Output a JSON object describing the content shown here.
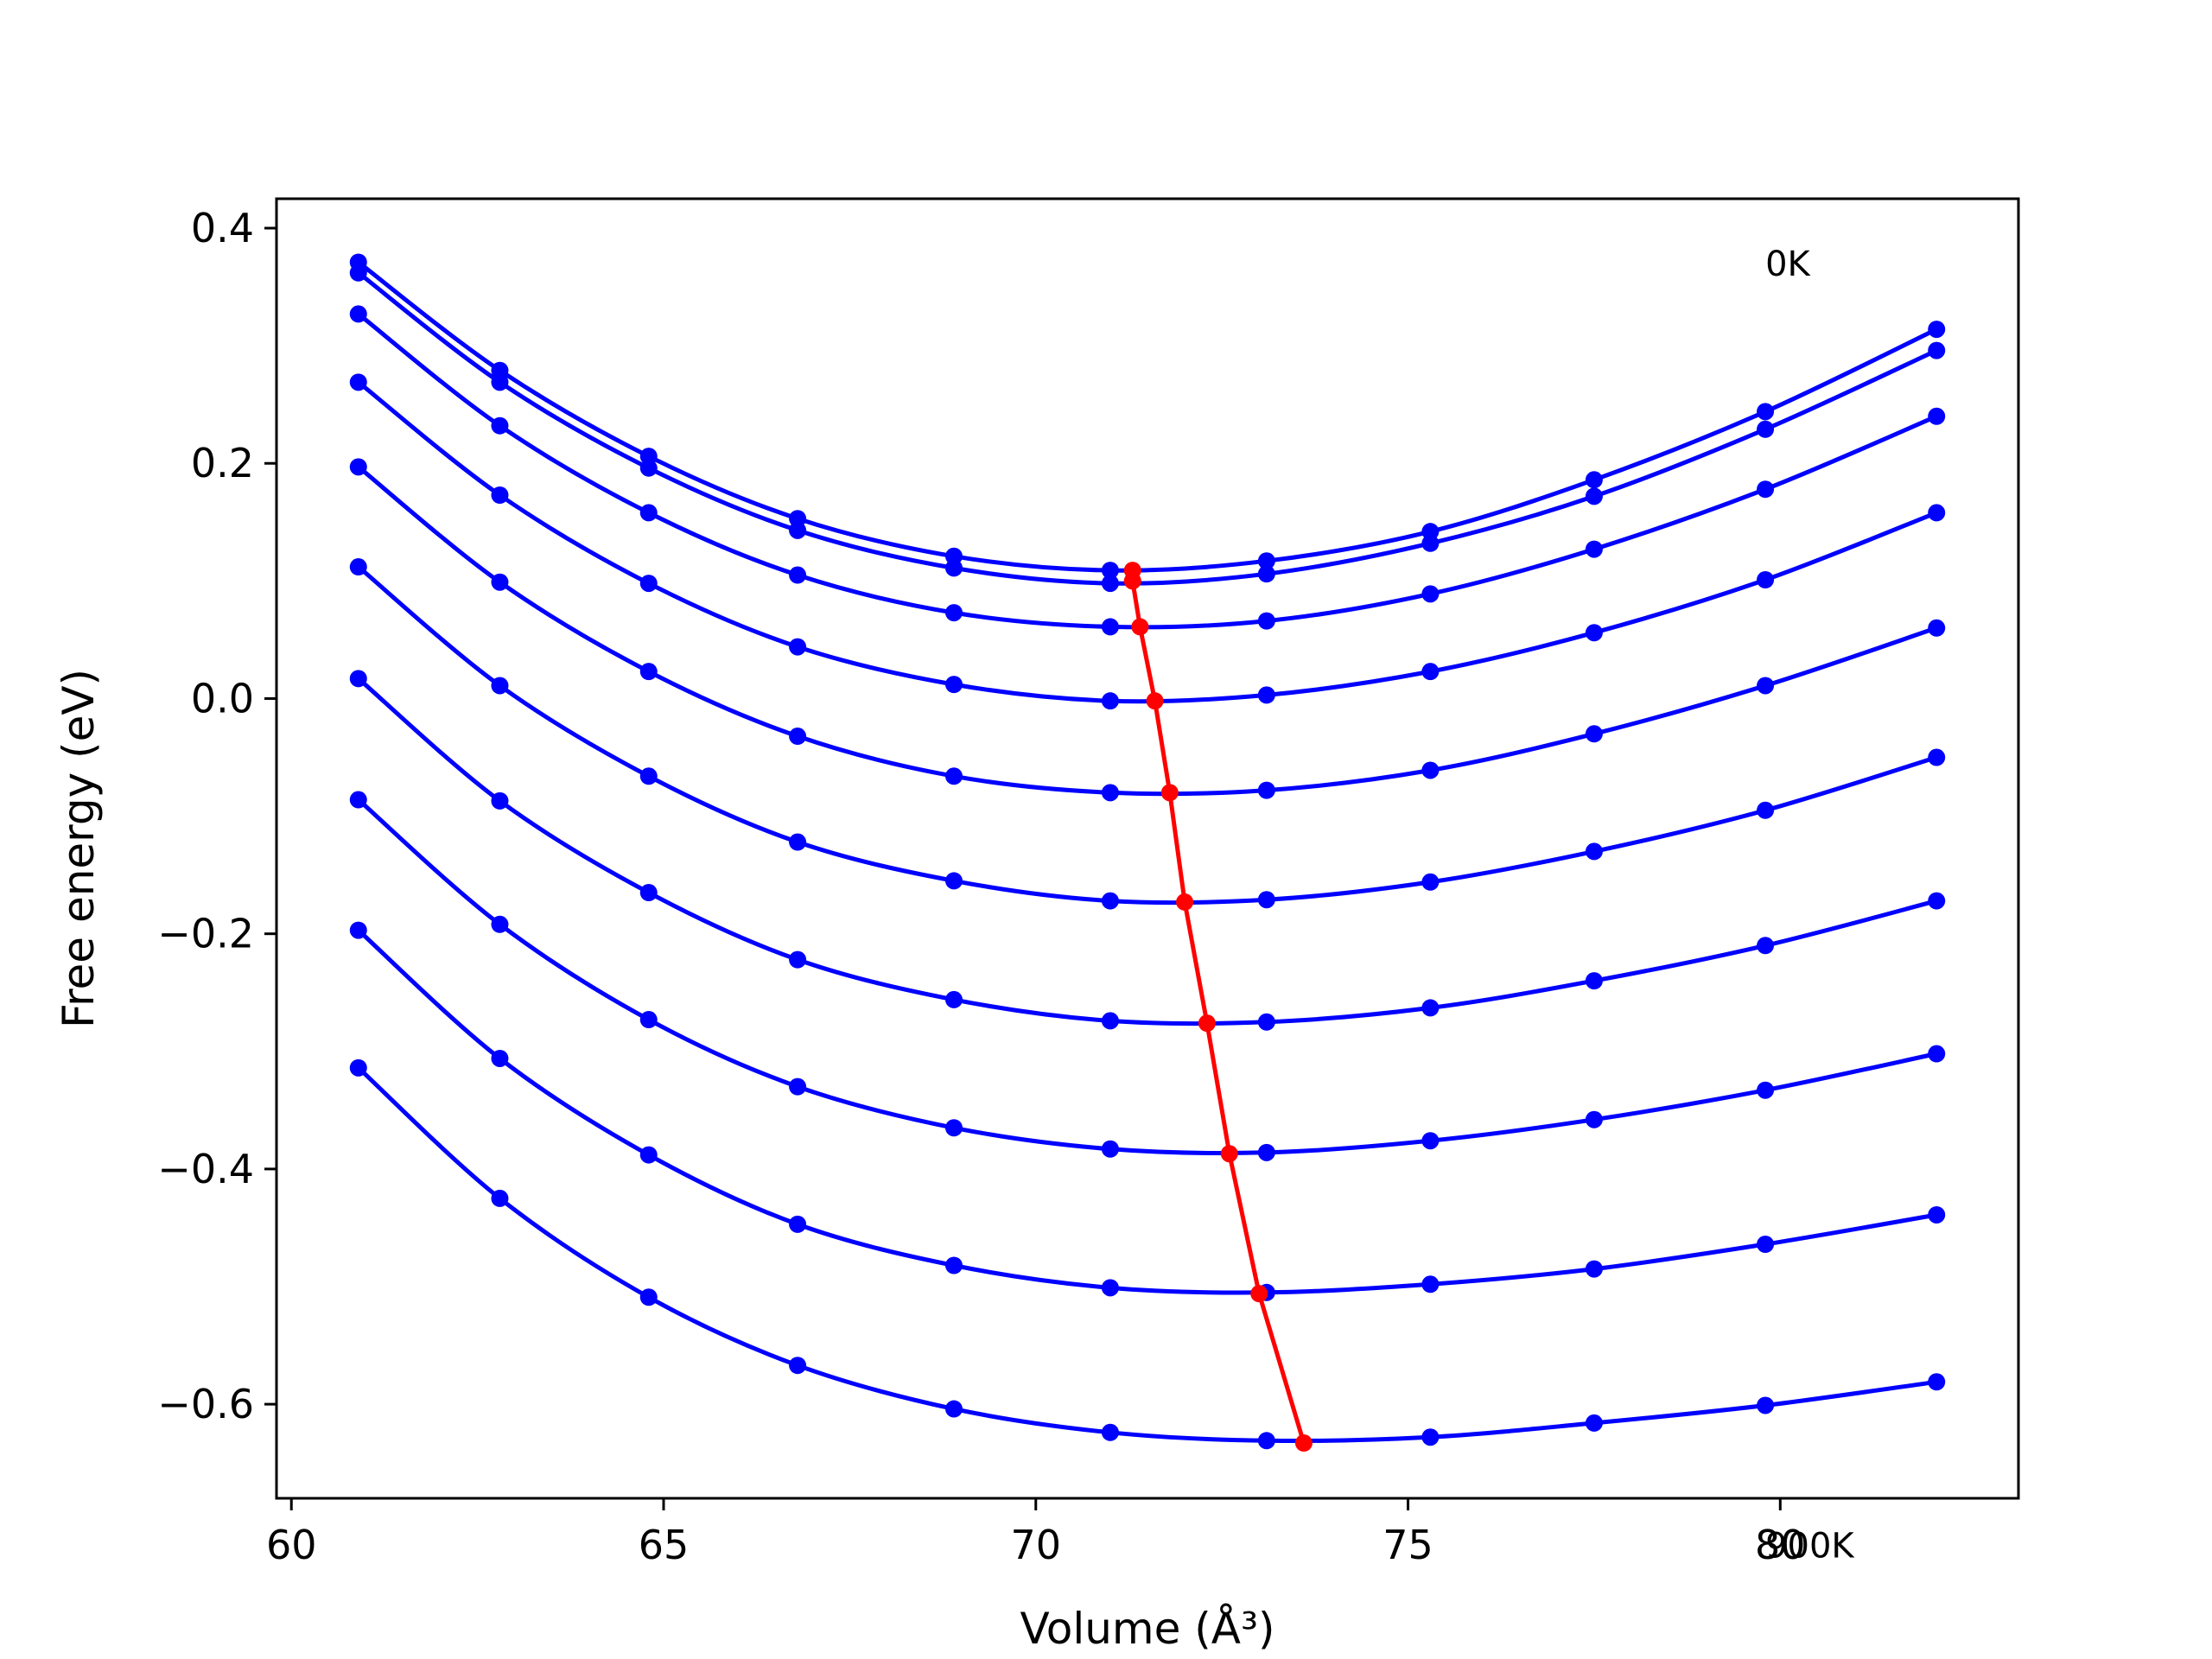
{
  "chart_data": {
    "type": "line",
    "title": "",
    "xlabel": "Volume (Å³)",
    "ylabel": "Free energy (eV)",
    "xlim": [
      59.8,
      83.2
    ],
    "ylim": [
      -0.68,
      0.425
    ],
    "xticks": [
      60,
      65,
      70,
      75,
      80
    ],
    "xtick_labels": [
      "60",
      "65",
      "70",
      "75",
      "80"
    ],
    "yticks": [
      0.4,
      0.2,
      0.0,
      -0.2,
      -0.4,
      -0.6
    ],
    "ytick_labels": [
      "0.4",
      "0.2",
      "0.0",
      "−0.2",
      "−0.4",
      "−0.6"
    ],
    "grid": false,
    "legend": "none",
    "colors": {
      "isotherms": "#0000ff",
      "minima": "#ff0000"
    },
    "annotations": [
      {
        "text": "0K",
        "x": 79.8,
        "y": 0.37
      },
      {
        "text": "900K",
        "x": 79.8,
        "y": -0.72
      }
    ],
    "x": [
      60.9,
      62.8,
      64.8,
      66.8,
      68.9,
      71.0,
      73.1,
      75.3,
      77.5,
      79.8,
      82.1
    ],
    "series": [
      {
        "values": [
          0.371,
          0.279,
          0.206,
          0.153,
          0.121,
          0.109,
          0.117,
          0.142,
          0.186,
          0.244,
          0.314
        ]
      },
      {
        "values": [
          0.362,
          0.269,
          0.196,
          0.143,
          0.111,
          0.098,
          0.106,
          0.132,
          0.172,
          0.229,
          0.296
        ]
      },
      {
        "values": [
          0.327,
          0.232,
          0.158,
          0.105,
          0.073,
          0.061,
          0.066,
          0.089,
          0.127,
          0.178,
          0.24
        ]
      },
      {
        "values": [
          0.269,
          0.173,
          0.098,
          0.044,
          0.012,
          -0.002,
          0.003,
          0.023,
          0.056,
          0.101,
          0.158
        ]
      },
      {
        "values": [
          0.197,
          0.099,
          0.023,
          -0.032,
          -0.066,
          -0.08,
          -0.078,
          -0.061,
          -0.03,
          0.011,
          0.06
        ]
      },
      {
        "values": [
          0.112,
          0.011,
          -0.066,
          -0.122,
          -0.155,
          -0.172,
          -0.171,
          -0.156,
          -0.13,
          -0.095,
          -0.05
        ]
      },
      {
        "values": [
          0.017,
          -0.087,
          -0.165,
          -0.222,
          -0.256,
          -0.274,
          -0.275,
          -0.263,
          -0.24,
          -0.21,
          -0.172
        ]
      },
      {
        "values": [
          -0.086,
          -0.192,
          -0.273,
          -0.33,
          -0.365,
          -0.383,
          -0.386,
          -0.376,
          -0.358,
          -0.333,
          -0.302
        ]
      },
      {
        "values": [
          -0.197,
          -0.306,
          -0.388,
          -0.447,
          -0.482,
          -0.501,
          -0.505,
          -0.498,
          -0.485,
          -0.464,
          -0.439
        ]
      },
      {
        "values": [
          -0.314,
          -0.425,
          -0.509,
          -0.567,
          -0.604,
          -0.624,
          -0.631,
          -0.628,
          -0.616,
          -0.601,
          -0.581
        ]
      }
    ],
    "minima": {
      "x": [
        71.3,
        71.3,
        71.4,
        71.6,
        71.8,
        72.0,
        72.3,
        72.6,
        73.0,
        73.6
      ],
      "y": [
        0.109,
        0.1,
        0.061,
        -0.002,
        -0.08,
        -0.173,
        -0.276,
        -0.387,
        -0.506,
        -0.633
      ]
    }
  }
}
